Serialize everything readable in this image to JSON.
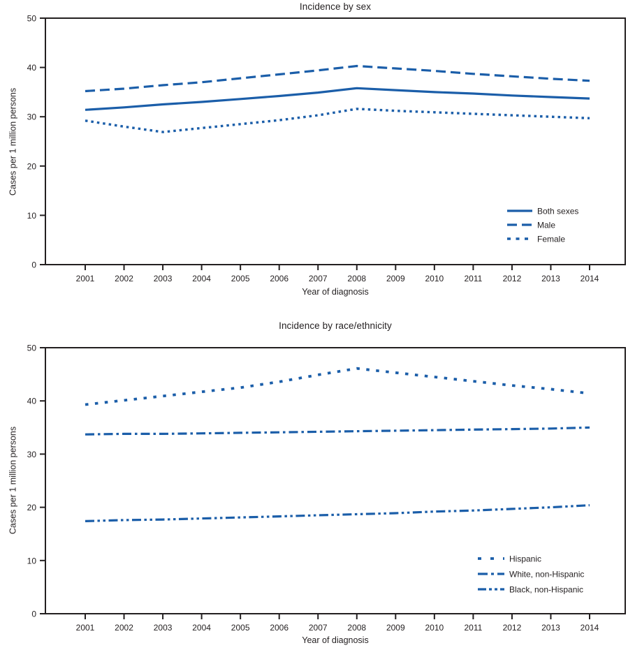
{
  "figure": {
    "background_color": "#ffffff",
    "line_color": "#1b5ea9",
    "axis_color": "#231f20"
  },
  "chart_data": [
    {
      "type": "line",
      "title": "Incidence by sex",
      "xlabel": "Year of diagnosis",
      "ylabel": "Cases per 1 million persons",
      "ylim": [
        0,
        50
      ],
      "yticks": [
        0,
        10,
        20,
        30,
        40,
        50
      ],
      "grid": false,
      "legend_position": "inside-right",
      "x": [
        2001,
        2002,
        2003,
        2004,
        2005,
        2006,
        2007,
        2008,
        2009,
        2010,
        2011,
        2012,
        2013,
        2014
      ],
      "series": [
        {
          "name": "Both sexes",
          "style": "solid",
          "values": [
            31.4,
            31.9,
            32.5,
            33.0,
            33.6,
            34.2,
            34.9,
            35.8,
            35.4,
            35.0,
            34.7,
            34.3,
            34.0,
            33.7
          ]
        },
        {
          "name": "Male",
          "style": "dash",
          "values": [
            35.2,
            35.7,
            36.4,
            37.0,
            37.8,
            38.6,
            39.4,
            40.3,
            39.8,
            39.3,
            38.7,
            38.2,
            37.7,
            37.3
          ]
        },
        {
          "name": "Female",
          "style": "dot",
          "values": [
            29.2,
            28.0,
            26.9,
            27.7,
            28.5,
            29.3,
            30.3,
            31.6,
            31.2,
            30.9,
            30.6,
            30.3,
            30.0,
            29.7
          ]
        }
      ]
    },
    {
      "type": "line",
      "title": "Incidence by race/ethnicity",
      "xlabel": "Year of diagnosis",
      "ylabel": "Cases per 1 million persons",
      "ylim": [
        0,
        50
      ],
      "yticks": [
        0,
        10,
        20,
        30,
        40,
        50
      ],
      "grid": false,
      "legend_position": "inside-right",
      "x": [
        2001,
        2002,
        2003,
        2004,
        2005,
        2006,
        2007,
        2008,
        2009,
        2010,
        2011,
        2012,
        2013,
        2014
      ],
      "series": [
        {
          "name": "Hispanic",
          "style": "sparse-dot",
          "values": [
            39.3,
            40.1,
            40.9,
            41.7,
            42.5,
            43.6,
            44.9,
            46.1,
            45.3,
            44.5,
            43.7,
            42.9,
            42.2,
            41.4
          ]
        },
        {
          "name": "White, non-Hispanic",
          "style": "dash-dot",
          "values": [
            33.7,
            33.8,
            33.8,
            33.9,
            34.0,
            34.1,
            34.2,
            34.3,
            34.4,
            34.5,
            34.6,
            34.7,
            34.8,
            35.0
          ]
        },
        {
          "name": "Black, non-Hispanic",
          "style": "dash-dot-dot",
          "values": [
            17.4,
            17.6,
            17.7,
            17.9,
            18.1,
            18.3,
            18.5,
            18.7,
            18.9,
            19.2,
            19.4,
            19.7,
            20.0,
            20.4
          ]
        }
      ]
    }
  ]
}
